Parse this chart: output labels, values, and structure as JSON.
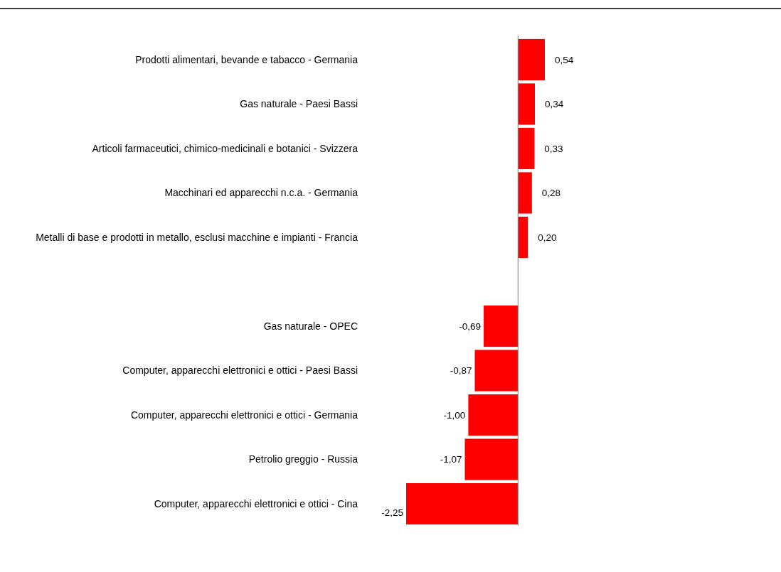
{
  "chart_data": {
    "type": "bar",
    "orientation": "horizontal",
    "categories": [
      "Prodotti alimentari, bevande e tabacco - Germania",
      "Gas naturale - Paesi Bassi",
      "Articoli farmaceutici, chimico-medicinali e botanici - Svizzera",
      "Macchinari ed apparecchi n.c.a. - Germania",
      "Metalli di base e prodotti in metallo, esclusi macchine e impianti - Francia",
      null,
      "Gas naturale - OPEC",
      "Computer, apparecchi elettronici e ottici - Paesi Bassi",
      "Computer, apparecchi elettronici e ottici - Germania",
      "Petrolio greggio - Russia",
      "Computer, apparecchi elettronici e ottici - Cina"
    ],
    "values": [
      0.54,
      0.34,
      0.33,
      0.28,
      0.2,
      null,
      -0.69,
      -0.87,
      -1.0,
      -1.07,
      -2.25
    ],
    "value_labels": [
      "0,54",
      "0,34",
      "0,33",
      "0,28",
      "0,20",
      null,
      "-0,69",
      "-0,87",
      "-1,00",
      "-1,07",
      "-2,25"
    ],
    "color": "#ff0000"
  }
}
